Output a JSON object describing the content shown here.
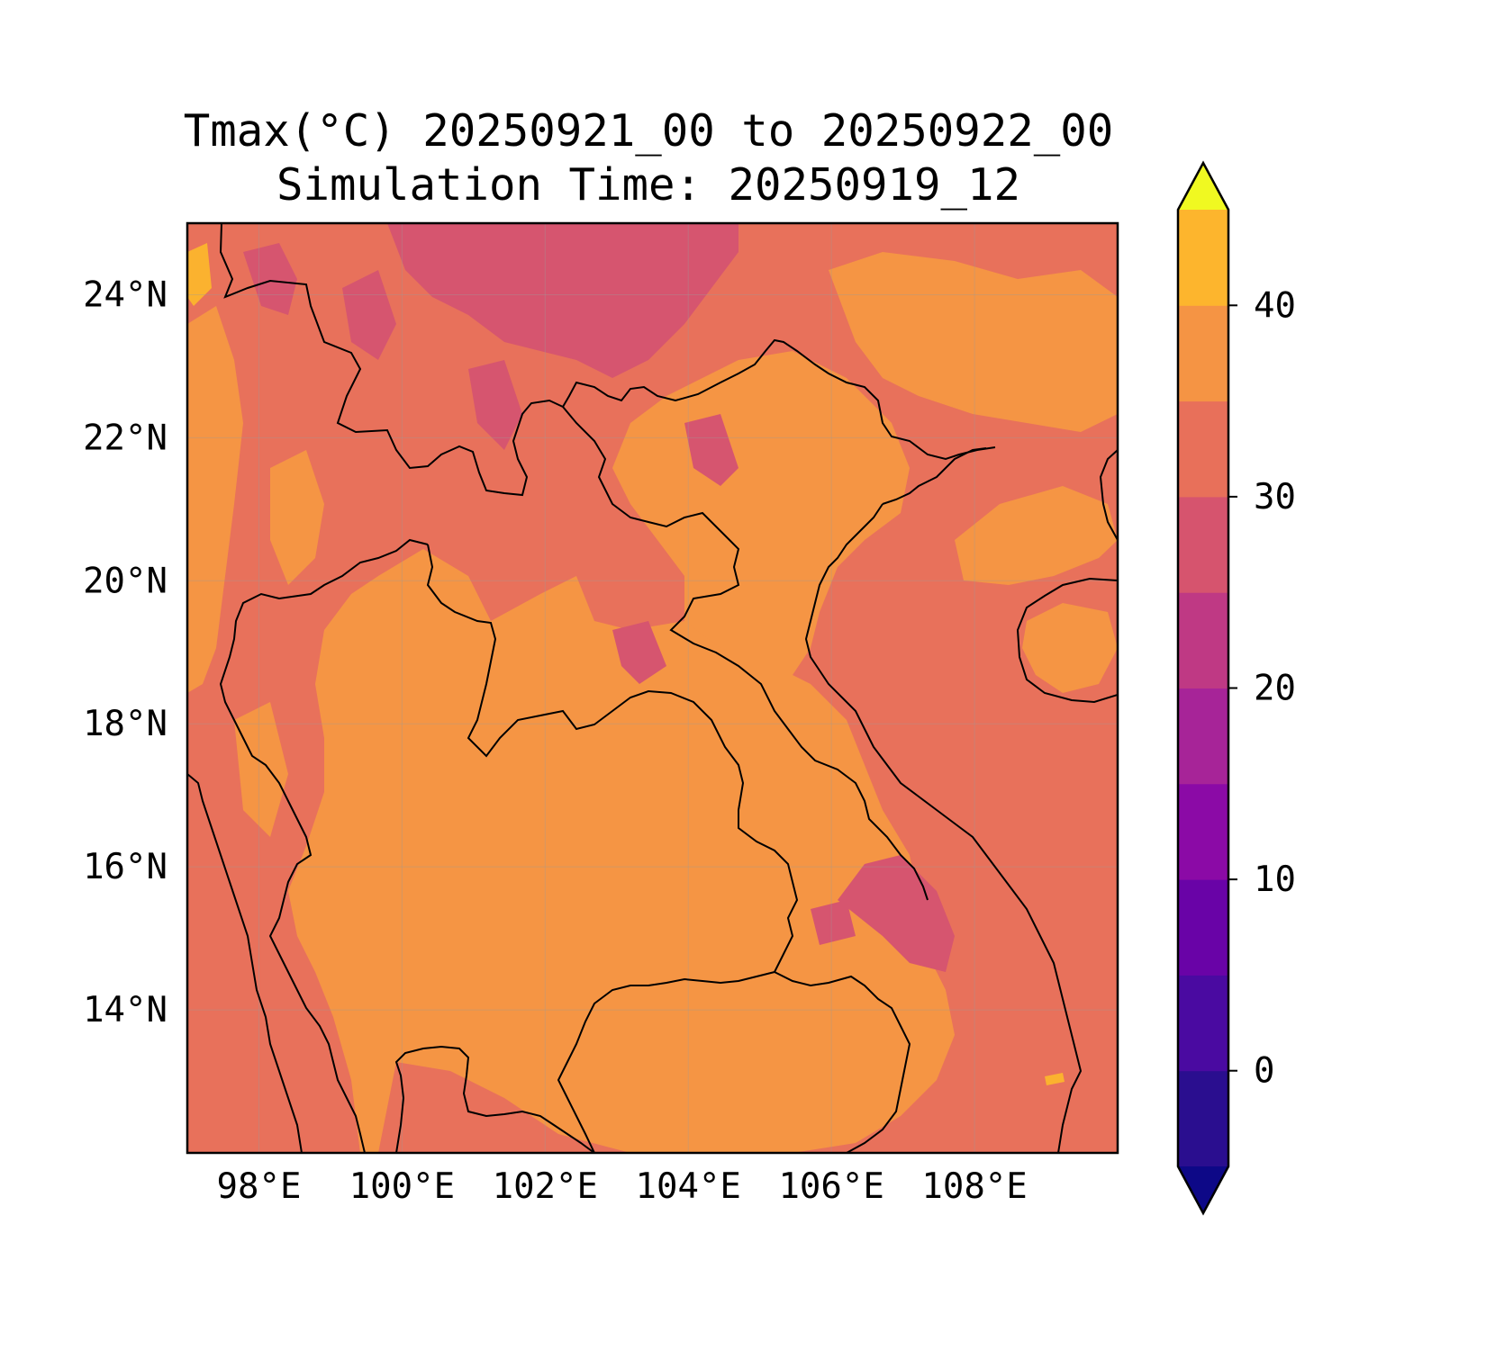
{
  "title": "Tmax(°C) 20250921_00 to 20250922_00",
  "subtitle": "Simulation Time: 20250919_12",
  "map": {
    "variable": "Tmax(°C)",
    "extent": {
      "lon": [
        97.0,
        110.0
      ],
      "lat": [
        12.0,
        25.0
      ]
    },
    "lon_ticks": [
      {
        "value": 98,
        "label": "98°E"
      },
      {
        "value": 100,
        "label": "100°E"
      },
      {
        "value": 102,
        "label": "102°E"
      },
      {
        "value": 104,
        "label": "104°E"
      },
      {
        "value": 106,
        "label": "106°E"
      },
      {
        "value": 108,
        "label": "108°E"
      }
    ],
    "lat_ticks": [
      {
        "value": 14,
        "label": "14°N"
      },
      {
        "value": 16,
        "label": "16°N"
      },
      {
        "value": 18,
        "label": "18°N"
      },
      {
        "value": 20,
        "label": "20°N"
      },
      {
        "value": 22,
        "label": "22°N"
      },
      {
        "value": 24,
        "label": "24°N"
      }
    ],
    "gridlines": true,
    "coastlines_and_borders": true
  },
  "colorbar": {
    "orientation": "vertical",
    "placement": "right",
    "extend": "both",
    "range": [
      -5,
      45
    ],
    "levels": [
      -5,
      0,
      5,
      10,
      15,
      20,
      25,
      30,
      35,
      40,
      45
    ],
    "colors": [
      "#2a0e8f",
      "#4a0aa1",
      "#6903a7",
      "#8b0aa6",
      "#a72498",
      "#bf3984",
      "#d6546e",
      "#e8705a",
      "#f59444",
      "#fdb52d",
      "#f6e424"
    ],
    "under_color": "#0d0887",
    "over_color": "#f0f921",
    "ticks": [
      {
        "value": 0,
        "label": "0"
      },
      {
        "value": 10,
        "label": "10"
      },
      {
        "value": 20,
        "label": "20"
      },
      {
        "value": 30,
        "label": "30"
      },
      {
        "value": 40,
        "label": "40"
      }
    ]
  },
  "field_colors": {
    "base": "#e8715b",
    "warm": "#f59544",
    "cool": "#d6556f",
    "hot": "#fbb22f",
    "coast_line": "#000000"
  }
}
